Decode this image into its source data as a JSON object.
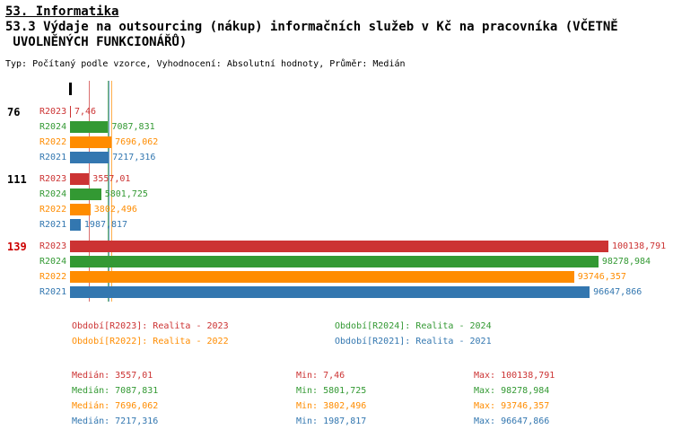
{
  "header": {
    "title": "53. Informatika",
    "subtitle_line1": "53.3 Výdaje na outsourcing (nákup) informačních služeb v Kč na pracovníka (VČETNĚ",
    "subtitle_line2": " UVOLNĚNÝCH FUNKCIONÁŘŮ)",
    "meta": "Typ: Počítaný podle vzorce, Vyhodnocení: Absolutní hodnoty, Průměr: Medián"
  },
  "colors": {
    "R2023": "#cc3333",
    "R2024": "#339933",
    "R2022": "#ff8c00",
    "R2021": "#3377b0"
  },
  "chart_data": {
    "type": "bar",
    "orientation": "horizontal",
    "x_max": 100138.791,
    "series_order": [
      "R2023",
      "R2024",
      "R2022",
      "R2021"
    ],
    "groups": [
      {
        "label": "76",
        "label_color": "#000000",
        "bars": [
          {
            "series": "R2023",
            "value": 7.46,
            "display": "7,46"
          },
          {
            "series": "R2024",
            "value": 7087.831,
            "display": "7087,831"
          },
          {
            "series": "R2022",
            "value": 7696.062,
            "display": "7696,062"
          },
          {
            "series": "R2021",
            "value": 7217.316,
            "display": "7217,316"
          }
        ]
      },
      {
        "label": "111",
        "label_color": "#000000",
        "bars": [
          {
            "series": "R2023",
            "value": 3557.01,
            "display": "3557,01"
          },
          {
            "series": "R2024",
            "value": 5801.725,
            "display": "5801,725"
          },
          {
            "series": "R2022",
            "value": 3802.496,
            "display": "3802,496"
          },
          {
            "series": "R2021",
            "value": 1987.817,
            "display": "1987,817"
          }
        ]
      },
      {
        "label": "139",
        "label_color": "#cc0000",
        "bars": [
          {
            "series": "R2023",
            "value": 100138.791,
            "display": "100138,791"
          },
          {
            "series": "R2024",
            "value": 98278.984,
            "display": "98278,984"
          },
          {
            "series": "R2022",
            "value": 93746.357,
            "display": "93746,357"
          },
          {
            "series": "R2021",
            "value": 96647.866,
            "display": "96647,866"
          }
        ]
      }
    ],
    "median_lines": [
      {
        "series": "R2023",
        "value": 3557.01
      },
      {
        "series": "R2024",
        "value": 7087.831
      },
      {
        "series": "R2022",
        "value": 7696.062
      },
      {
        "series": "R2021",
        "value": 7217.316
      }
    ]
  },
  "legend": {
    "items": [
      {
        "series": "R2023",
        "text": "Období[R2023]: Realita - 2023"
      },
      {
        "series": "R2024",
        "text": "Období[R2024]: Realita - 2024"
      },
      {
        "series": "R2022",
        "text": "Období[R2022]: Realita - 2022"
      },
      {
        "series": "R2021",
        "text": "Období[R2021]: Realita - 2021"
      }
    ]
  },
  "stats": {
    "rows": [
      {
        "series": "R2023",
        "median": "Medián: 3557,01",
        "min": "Min: 7,46",
        "max": "Max: 100138,791"
      },
      {
        "series": "R2024",
        "median": "Medián: 7087,831",
        "min": "Min: 5801,725",
        "max": "Max: 98278,984"
      },
      {
        "series": "R2022",
        "median": "Medián: 7696,062",
        "min": "Min: 3802,496",
        "max": "Max: 93746,357"
      },
      {
        "series": "R2021",
        "median": "Medián: 7217,316",
        "min": "Min: 1987,817",
        "max": "Max: 96647,866"
      }
    ]
  }
}
